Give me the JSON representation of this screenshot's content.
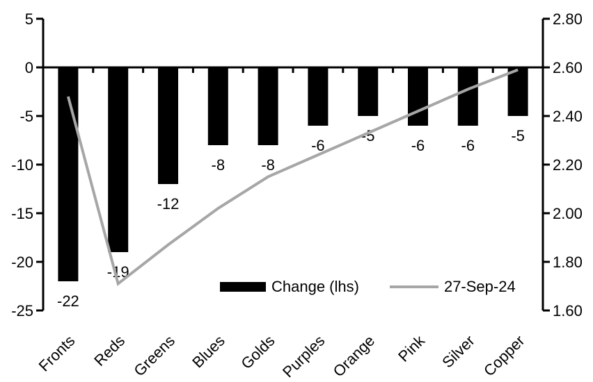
{
  "chart_data": {
    "type": "bar",
    "subtype": "combo-bar-line-dual-axis",
    "title": "",
    "xlabel": "",
    "ylabel": "",
    "grid": false,
    "legend_position": "inside-bottom-center",
    "categories": [
      "Fronts",
      "Reds",
      "Greens",
      "Blues",
      "Golds",
      "Purples",
      "Orange",
      "Pink",
      "Silver",
      "Copper"
    ],
    "series": [
      {
        "name": "Change (lhs)",
        "kind": "bar",
        "axis": "left",
        "color": "#000000",
        "values": [
          -22,
          -19,
          -12,
          -8,
          -8,
          -6,
          -5,
          -6,
          -6,
          -5
        ],
        "data_labels": [
          "-22",
          "-19",
          "-12",
          "-8",
          "-8",
          "-6",
          "-5",
          "-6",
          "-6",
          "-5"
        ]
      },
      {
        "name": "27-Sep-24",
        "kind": "line",
        "axis": "right",
        "color": "#a6a6a6",
        "values": [
          2.48,
          1.71,
          1.87,
          2.02,
          2.15,
          2.24,
          2.33,
          2.42,
          2.51,
          2.59
        ]
      }
    ],
    "left_axis": {
      "tick_labels": [
        "5",
        "0",
        "-5",
        "-10",
        "-15",
        "-20",
        "-25"
      ],
      "tick_values": [
        5,
        0,
        -5,
        -10,
        -15,
        -20,
        -25
      ],
      "min": -25,
      "max": 5
    },
    "right_axis": {
      "tick_labels": [
        "2.80",
        "2.60",
        "2.40",
        "2.20",
        "2.00",
        "1.80",
        "1.60"
      ],
      "tick_values": [
        2.8,
        2.6,
        2.4,
        2.2,
        2.0,
        1.8,
        1.6
      ],
      "min": 1.6,
      "max": 2.8
    }
  },
  "colors": {
    "bar": "#000000",
    "line": "#a6a6a6",
    "axis": "#000000",
    "background": "#ffffff"
  }
}
